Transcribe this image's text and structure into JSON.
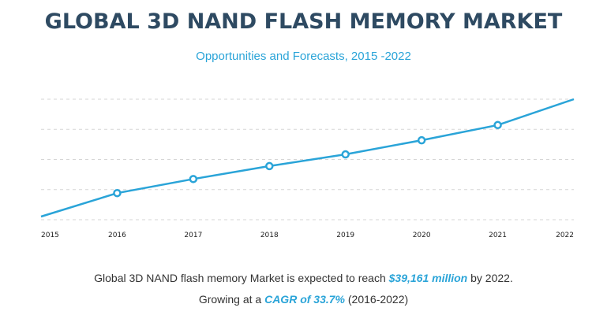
{
  "header": {
    "title": "GLOBAL 3D NAND FLASH MEMORY MARKET",
    "subtitle": "Opportunities and Forecasts, 2015 -2022"
  },
  "colors": {
    "title": "#2e4a62",
    "accent": "#2aa4d8",
    "grid": "#d6d6d6"
  },
  "chart_data": {
    "type": "line",
    "x": [
      "2015",
      "2016",
      "2017",
      "2018",
      "2019",
      "2020",
      "2021",
      "2022"
    ],
    "series": [
      {
        "values": [
          0.0,
          0.2,
          0.32,
          0.43,
          0.53,
          0.65,
          0.78,
          1.0
        ]
      }
    ],
    "markers": [
      false,
      true,
      true,
      true,
      true,
      true,
      true,
      false
    ],
    "ylim": [
      0,
      1
    ],
    "y_axis_labels_shown": false,
    "gridlines": "horizontal dashed",
    "legend": "none"
  },
  "footer": {
    "line1_pre": "Global 3D NAND flash memory Market is expected to reach ",
    "line1_highlight": "$39,161  million",
    "line1_post": " by 2022.",
    "line2_pre": "Growing at a ",
    "line2_highlight": "CAGR of 33.7%",
    "line2_post": " (2016-2022)"
  }
}
